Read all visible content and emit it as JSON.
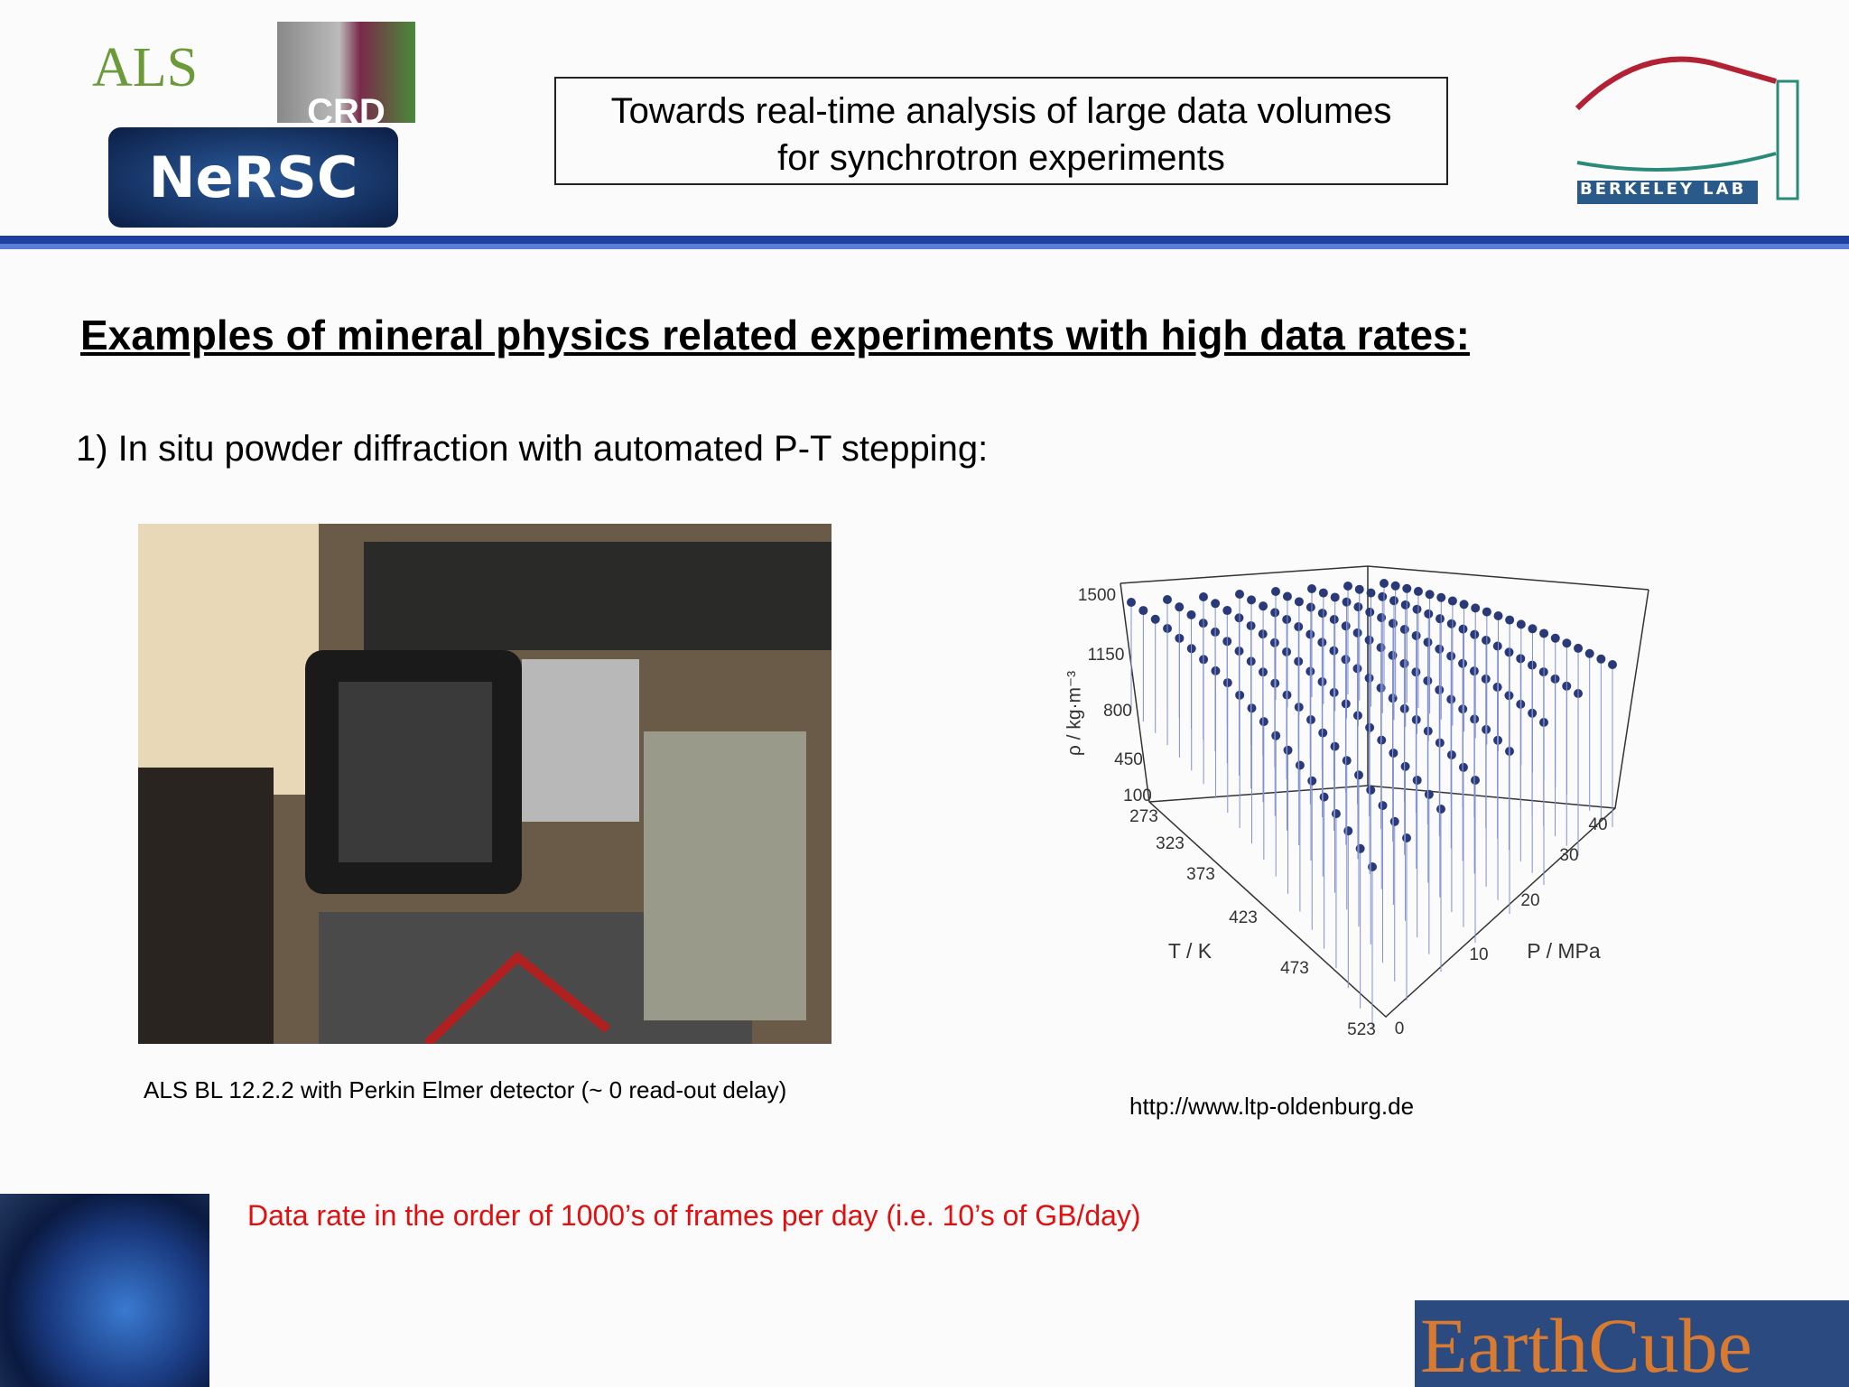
{
  "header": {
    "title_line1": "Towards real-time analysis of large data volumes",
    "title_line2": "for synchrotron experiments",
    "logos": {
      "als": "ALS",
      "crd": "CRD",
      "nersc": "NeRSC",
      "berkeley": "Berkeley Lab",
      "earthcube": "EarthCube"
    }
  },
  "heading": "Examples of mineral physics related experiments with high data rates:",
  "item": "1) In situ powder diffraction with automated P-T stepping:",
  "photo_caption": "ALS BL 12.2.2 with Perkin Elmer detector (~ 0 read-out delay)",
  "figure": {
    "rho_label": "ρ / kg·m⁻³",
    "t_label": "T / K",
    "p_label": "P / MPa",
    "rho_ticks": [
      1500,
      1150,
      800,
      450,
      100
    ],
    "t_ticks": [
      273,
      323,
      373,
      423,
      473,
      523
    ],
    "p_ticks": [
      0,
      10,
      20,
      30,
      40
    ],
    "source": "http://www.ltp-oldenburg.de"
  },
  "note": "Data rate in the order of 1000’s of frames per day (i.e. 10’s of GB/day)"
}
